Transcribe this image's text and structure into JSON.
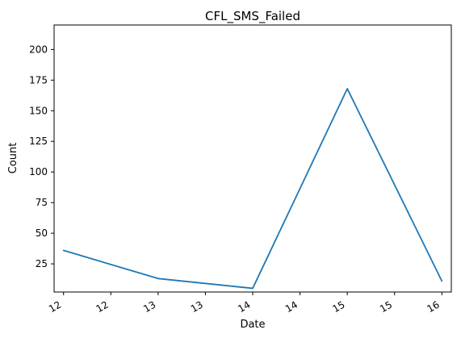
{
  "chart_data": {
    "type": "line",
    "title": "CFL_SMS_Failed",
    "xlabel": "Date",
    "ylabel": "Count",
    "x_tick_labels": [
      "12",
      "12",
      "13",
      "13",
      "14",
      "14",
      "15",
      "15",
      "16"
    ],
    "x_range": [
      11.9,
      16.1
    ],
    "y_ticks": [
      25,
      50,
      75,
      100,
      125,
      150,
      175,
      200
    ],
    "y_tick_labels": [
      "25",
      "50",
      "75",
      "100",
      "125",
      "150",
      "175",
      "200"
    ],
    "ylim": [
      2,
      220
    ],
    "grid": false,
    "series": [
      {
        "x": [
          12,
          13,
          14,
          15,
          16
        ],
        "values": [
          36,
          13,
          5,
          168,
          11
        ],
        "color": "#1f77b4"
      }
    ]
  }
}
